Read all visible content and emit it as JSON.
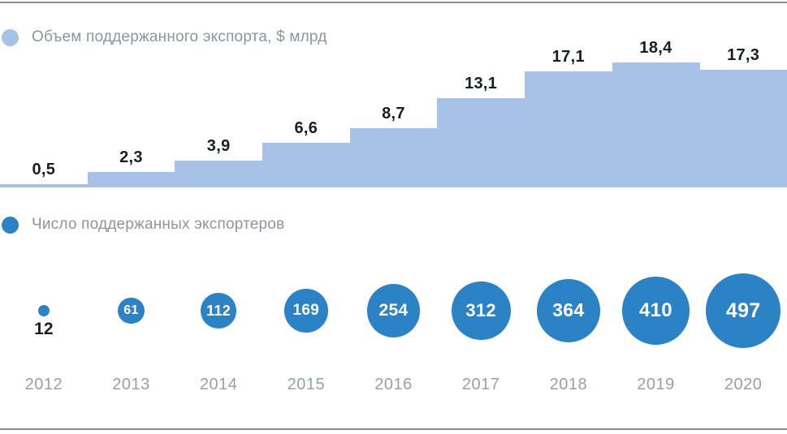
{
  "colors": {
    "area_fill": "#a7c2e6",
    "bubble_fill": "#2b82c4",
    "value_text": "#1a1d21",
    "year_text": "#97a0aa",
    "legend_text": "#8e959d",
    "rule_line": "#8a8e91",
    "bubble_text": "#ffffff"
  },
  "legend_top": {
    "label": "Объем поддержанного экспорта, $ млрд"
  },
  "legend_bottom": {
    "label": "Число поддержанных экспортеров"
  },
  "chart_data": [
    {
      "type": "area",
      "style": "step",
      "title": "Объем поддержанного экспорта, $ млрд",
      "categories": [
        "2012",
        "2013",
        "2014",
        "2015",
        "2016",
        "2017",
        "2018",
        "2019",
        "2020"
      ],
      "values": [
        0.5,
        2.3,
        3.9,
        6.6,
        8.7,
        13.1,
        17.1,
        18.4,
        17.3
      ],
      "value_labels": [
        "0,5",
        "2,3",
        "3,9",
        "6,6",
        "8,7",
        "13,1",
        "17,1",
        "18,4",
        "17,3"
      ],
      "xlabel": "",
      "ylabel": "$ млрд",
      "ylim": [
        0,
        18.4
      ],
      "grid": false,
      "legend_position": "top-left"
    },
    {
      "type": "scatter",
      "style": "sized-bubbles",
      "title": "Число поддержанных экспортеров",
      "categories": [
        "2012",
        "2013",
        "2014",
        "2015",
        "2016",
        "2017",
        "2018",
        "2019",
        "2020"
      ],
      "values": [
        12,
        61,
        112,
        169,
        254,
        312,
        364,
        410,
        497
      ],
      "xlabel": "",
      "ylabel": "",
      "grid": false,
      "legend_position": "middle-left"
    }
  ]
}
